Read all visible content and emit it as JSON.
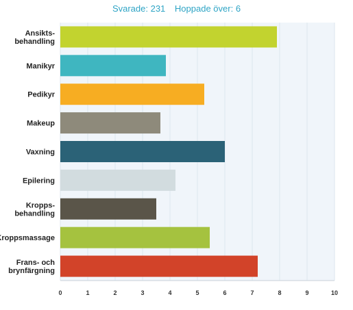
{
  "header": {
    "answered": "Svarade: 231",
    "skipped": "Hoppade över: 6"
  },
  "chart_data": {
    "type": "bar",
    "orientation": "horizontal",
    "categories": [
      [
        "Ansikts-",
        "behandling"
      ],
      [
        "Manikyr"
      ],
      [
        "Pedikyr"
      ],
      [
        "Makeup"
      ],
      [
        "Vaxning"
      ],
      [
        "Epilering"
      ],
      [
        "Kropps-",
        "behandling"
      ],
      [
        "Kroppsmassage"
      ],
      [
        "Frans- och",
        "brynfärgning"
      ]
    ],
    "values": [
      7.9,
      3.85,
      5.25,
      3.65,
      6.0,
      4.2,
      3.5,
      5.45,
      7.2
    ],
    "colors": [
      "#c2d32f",
      "#3fb6c0",
      "#f7ad22",
      "#8e8a7b",
      "#2b6277",
      "#d2dcdf",
      "#5a5549",
      "#a5c23f",
      "#d24329"
    ],
    "xlim": [
      0,
      10
    ],
    "xticks": [
      0,
      1,
      2,
      3,
      4,
      5,
      6,
      7,
      8,
      9,
      10
    ],
    "grid": "vertical",
    "legend": "none",
    "title": "",
    "xlabel": "",
    "ylabel": ""
  }
}
